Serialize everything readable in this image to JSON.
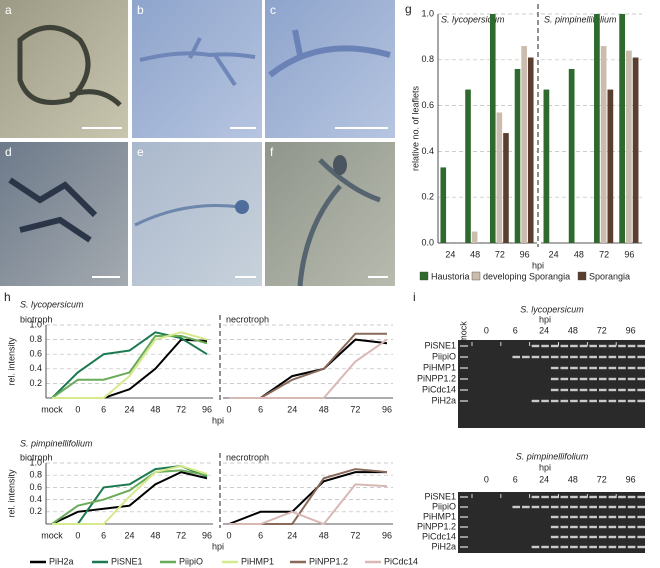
{
  "panels": {
    "labels": [
      "a",
      "b",
      "c",
      "d",
      "e",
      "f",
      "g",
      "h",
      "i"
    ]
  },
  "chart_data": [
    {
      "type": "bar",
      "title": "S. lycopersicum",
      "ylabel": "relative no. of leaflets",
      "xlabel": "hpi",
      "legend": "bottom",
      "grid": true,
      "categories": [
        "24",
        "48",
        "72",
        "96"
      ],
      "ylim": [
        0,
        1
      ],
      "yticks": [
        {
          "value": 0,
          "label": "0.0"
        },
        0.2,
        0.4,
        0.6,
        0.8,
        {
          "value": 1,
          "label": "1.0"
        }
      ],
      "series": [
        {
          "name": "Haustoria",
          "color": "#2e6a2e",
          "values": [
            0.33,
            0.67,
            1.0,
            0.76
          ]
        },
        {
          "name": "developing Sporangia",
          "color": "#cbbcae",
          "values": [
            0,
            0.05,
            0.57,
            0.86
          ]
        },
        {
          "name": "Sporangia",
          "color": "#5a3f31",
          "values": [
            0,
            0,
            0.48,
            0.81
          ]
        }
      ]
    },
    {
      "type": "bar",
      "title": "S. pimpinellifolium",
      "grid": true,
      "categories": [
        "24",
        "48",
        "72",
        "96"
      ],
      "ylim": [
        0,
        1
      ],
      "yticks": [
        0.2,
        0.4,
        0.6,
        0.8,
        1
      ],
      "series": [
        {
          "color": "#2e6a2e",
          "values": [
            0.67,
            0.76,
            1.0,
            1.0
          ]
        },
        {
          "color": "#cbbcae",
          "values": [
            0,
            0,
            0.86,
            0.84
          ]
        },
        {
          "color": "#5a3f31",
          "values": [
            0,
            0,
            0.67,
            0.81
          ]
        }
      ]
    },
    {
      "type": "line",
      "title": "S. lycopersicum",
      "subtitle": "biotroph",
      "ylabel": "rel. intensity",
      "xlabel": "hpi",
      "grid": true,
      "categories": [
        "mock",
        "0",
        "6",
        "24",
        "48",
        "72",
        "96"
      ],
      "ylim": [
        0,
        1
      ],
      "yticks": [
        0.2,
        0.4,
        0.6,
        0.8,
        {
          "value": 1,
          "label": "1.0"
        }
      ],
      "series": [
        {
          "name": "PiH2a",
          "color": "#000000",
          "values": [
            0,
            0,
            0,
            0.12,
            0.4,
            0.8,
            0.78
          ]
        },
        {
          "name": "PiSNE1",
          "color": "#1b7a50",
          "values": [
            0,
            0.35,
            0.6,
            0.65,
            0.9,
            0.82,
            0.6
          ]
        },
        {
          "name": "PiipiO",
          "color": "#6aab5a",
          "values": [
            0,
            0.25,
            0.25,
            0.35,
            0.85,
            0.85,
            0.75
          ]
        },
        {
          "name": "PiHMP1",
          "color": "#d6e98c",
          "values": [
            0,
            0,
            0,
            0.3,
            0.8,
            0.9,
            0.8
          ]
        }
      ]
    },
    {
      "type": "line",
      "subtitle": "necrotroph",
      "grid": true,
      "categories": [
        "0",
        "6",
        "24",
        "48",
        "72",
        "96"
      ],
      "ylim": [
        0,
        1
      ],
      "yticks": [
        0.2,
        0.4,
        0.6,
        0.8,
        1
      ],
      "series": [
        {
          "color": "#000000",
          "values": [
            0,
            0,
            0.3,
            0.4,
            0.8,
            0.75
          ]
        },
        {
          "name": "PiNPP1.2",
          "color": "#8a6a5a",
          "values": [
            0,
            0,
            0.25,
            0.4,
            0.88,
            0.88
          ]
        },
        {
          "name": "PiCdc14",
          "color": "#d8b8b4",
          "values": [
            0,
            0,
            0,
            0,
            0.5,
            0.8
          ]
        }
      ]
    },
    {
      "type": "line",
      "title": "S. pimpinellifolium",
      "subtitle": "biotroph",
      "ylabel": "rel. intensity",
      "xlabel": "hpi",
      "grid": true,
      "categories": [
        "mock",
        "0",
        "6",
        "24",
        "48",
        "72",
        "96"
      ],
      "ylim": [
        0,
        1
      ],
      "yticks": [
        0.2,
        0.4,
        0.6,
        0.8,
        {
          "value": 1,
          "label": "1.0"
        }
      ],
      "series": [
        {
          "color": "#000000",
          "values": [
            0,
            0.2,
            0.25,
            0.3,
            0.65,
            0.85,
            0.75
          ]
        },
        {
          "color": "#1b7a50",
          "values": [
            0,
            0,
            0.6,
            0.65,
            0.9,
            0.95,
            0.78
          ]
        },
        {
          "color": "#6aab5a",
          "values": [
            0,
            0.3,
            0.4,
            0.55,
            0.85,
            0.88,
            0.8
          ]
        },
        {
          "color": "#d6e98c",
          "values": [
            0,
            0,
            0,
            0.45,
            0.85,
            0.95,
            0.82
          ]
        }
      ]
    },
    {
      "type": "line",
      "subtitle": "necrotroph",
      "grid": true,
      "categories": [
        "0",
        "6",
        "24",
        "48",
        "72",
        "96"
      ],
      "ylim": [
        0,
        1
      ],
      "yticks": [
        0.2,
        0.4,
        0.6,
        0.8,
        1
      ],
      "series": [
        {
          "color": "#000000",
          "values": [
            0,
            0.2,
            0.2,
            0.7,
            0.85,
            0.85
          ]
        },
        {
          "color": "#8a6a5a",
          "values": [
            0,
            0,
            0,
            0.75,
            0.9,
            0.85
          ]
        },
        {
          "color": "#d8b8b4",
          "values": [
            0,
            0,
            0.2,
            0,
            0.65,
            0.62
          ]
        }
      ]
    }
  ],
  "gels": [
    {
      "title": "S. lycopersicum",
      "hpi": "hpi",
      "mock": "mock",
      "lanes": [
        "0",
        "6",
        "24",
        "48",
        "72",
        "96"
      ],
      "rows": [
        "PiSNE1",
        "PiipiO",
        "PiHMP1",
        "PiNPP1.2",
        "PiCdc14",
        "PiH2a"
      ]
    },
    {
      "title": "S. pimpinellifolium",
      "hpi": "hpi",
      "lanes": [
        "0",
        "6",
        "24",
        "48",
        "72",
        "96"
      ],
      "rows": [
        "PiSNE1",
        "PiipiO",
        "PiHMP1",
        "PiNPP1.2",
        "PiCdc14",
        "PiH2a"
      ]
    }
  ]
}
